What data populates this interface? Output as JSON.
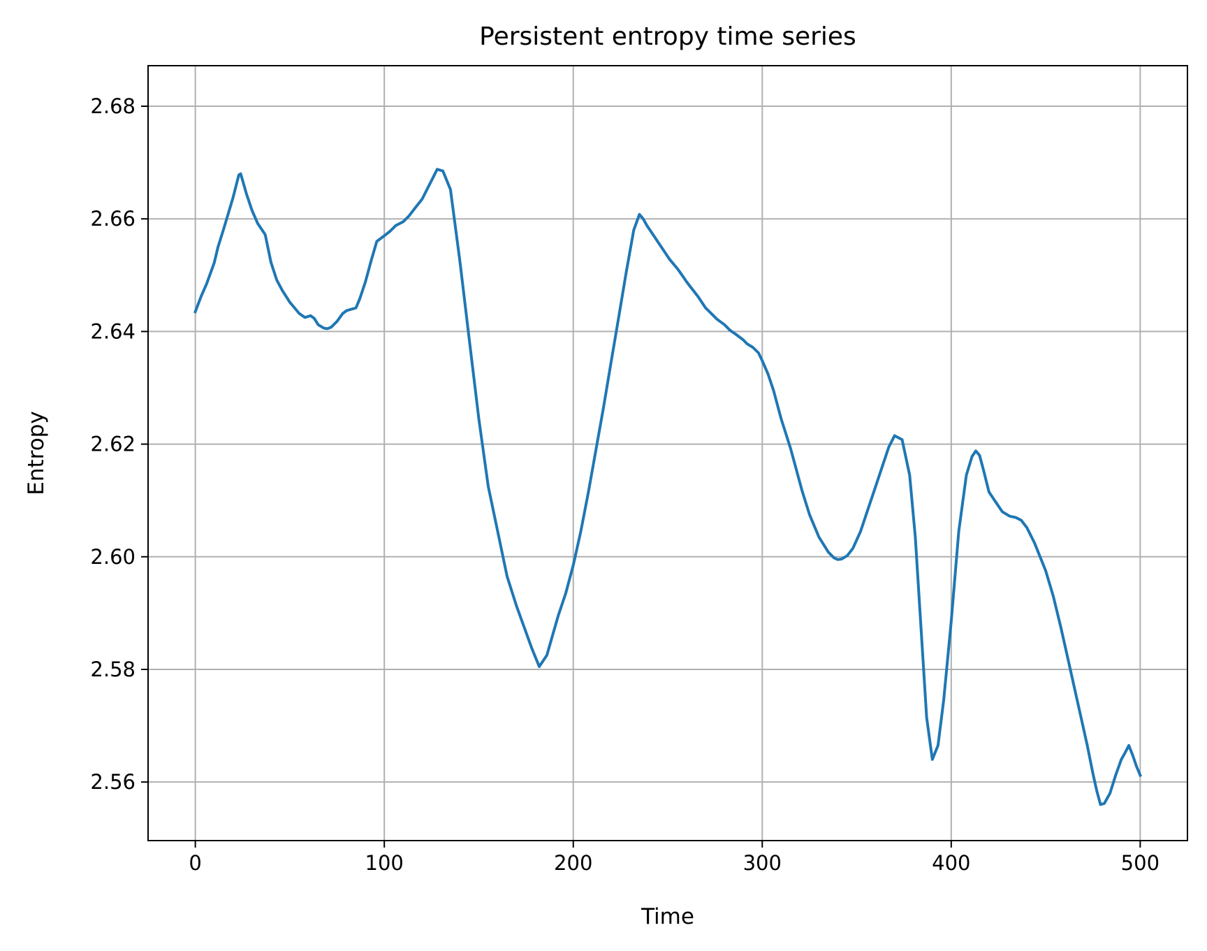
{
  "chart_data": {
    "type": "line",
    "title": "Persistent entropy time series",
    "xlabel": "Time",
    "ylabel": "Entropy",
    "xlim": [
      -25,
      525
    ],
    "ylim": [
      2.5496,
      2.6872
    ],
    "xticks": [
      0,
      100,
      200,
      300,
      400,
      500
    ],
    "xtick_labels": [
      "0",
      "100",
      "200",
      "300",
      "400",
      "500"
    ],
    "yticks": [
      2.56,
      2.58,
      2.6,
      2.62,
      2.64,
      2.66,
      2.68
    ],
    "ytick_labels": [
      "2.56",
      "2.58",
      "2.60",
      "2.62",
      "2.64",
      "2.66",
      "2.68"
    ],
    "grid": true,
    "series": [
      {
        "color": "#1f77b4",
        "x": [
          0,
          3,
          6,
          10,
          12,
          15,
          20,
          23,
          24,
          27,
          30,
          33,
          35,
          37,
          40,
          43,
          46,
          50,
          55,
          58,
          61,
          63,
          65,
          68,
          70,
          72,
          75,
          78,
          80,
          85,
          87,
          90,
          93,
          96,
          100,
          103,
          106,
          110,
          113,
          116,
          120,
          125,
          128,
          131,
          135,
          140,
          145,
          150,
          155,
          160,
          165,
          170,
          174,
          178,
          182,
          186,
          189,
          192,
          196,
          200,
          204,
          208,
          212,
          216,
          220,
          224,
          228,
          232,
          235,
          237,
          239,
          241,
          243,
          245,
          247,
          249,
          251,
          253,
          255,
          258,
          260,
          263,
          266,
          268,
          270,
          273,
          276,
          280,
          283,
          286,
          290,
          292,
          295,
          298,
          300,
          303,
          306,
          310,
          315,
          318,
          321,
          325,
          330,
          335,
          338,
          340,
          342,
          345,
          348,
          352,
          356,
          360,
          364,
          367,
          370,
          374,
          378,
          381,
          384,
          387,
          390,
          393,
          396,
          400,
          404,
          408,
          411,
          413,
          415,
          417,
          420,
          424,
          427,
          431,
          434,
          437,
          440,
          444,
          450,
          454,
          458,
          462,
          466,
          469,
          472,
          475,
          477,
          479,
          481,
          484,
          487,
          490,
          492,
          494,
          496,
          498,
          500
        ],
        "y": [
          2.6435,
          2.6462,
          2.6485,
          2.6522,
          2.655,
          2.6582,
          2.6638,
          2.6678,
          2.668,
          2.6645,
          2.6615,
          2.6592,
          2.6582,
          2.6572,
          2.6523,
          2.6492,
          2.6473,
          2.6452,
          2.6432,
          2.6425,
          2.6428,
          2.6423,
          2.6412,
          2.6406,
          2.6405,
          2.6408,
          2.6418,
          2.6432,
          2.6437,
          2.6442,
          2.6458,
          2.6488,
          2.6525,
          2.656,
          2.657,
          2.6578,
          2.6588,
          2.6595,
          2.6605,
          2.6618,
          2.6635,
          2.6668,
          2.6688,
          2.6685,
          2.6652,
          2.6525,
          2.6385,
          2.6245,
          2.6125,
          2.6045,
          2.5965,
          2.5912,
          2.5875,
          2.5838,
          2.5805,
          2.5825,
          2.586,
          2.5895,
          2.5935,
          2.5985,
          2.6045,
          2.6115,
          2.619,
          2.6265,
          2.6345,
          2.6425,
          2.6505,
          2.658,
          2.6608,
          2.66,
          2.6588,
          2.6578,
          2.6568,
          2.6558,
          2.6548,
          2.6538,
          2.6528,
          2.652,
          2.6512,
          2.6498,
          2.6488,
          2.6475,
          2.6462,
          2.6452,
          2.6442,
          2.6432,
          2.6422,
          2.6412,
          2.6402,
          2.6395,
          2.6385,
          2.6378,
          2.6372,
          2.6362,
          2.6348,
          2.6325,
          2.6295,
          2.6245,
          2.6192,
          2.6155,
          2.6118,
          2.6075,
          2.6035,
          2.6008,
          2.5998,
          2.5995,
          2.5996,
          2.6002,
          2.6015,
          2.6045,
          2.6085,
          2.6125,
          2.6165,
          2.6195,
          2.6215,
          2.6208,
          2.6145,
          2.6035,
          2.5875,
          2.5715,
          2.564,
          2.5665,
          2.5745,
          2.5885,
          2.6045,
          2.6145,
          2.6178,
          2.6188,
          2.618,
          2.6155,
          2.6115,
          2.6095,
          2.608,
          2.6072,
          2.607,
          2.6065,
          2.6052,
          2.6025,
          2.5975,
          2.593,
          2.5875,
          2.5815,
          2.5755,
          2.571,
          2.5665,
          2.5615,
          2.5585,
          2.556,
          2.5562,
          2.558,
          2.5612,
          2.564,
          2.5652,
          2.5665,
          2.5648,
          2.5628,
          2.5612
        ]
      }
    ]
  }
}
